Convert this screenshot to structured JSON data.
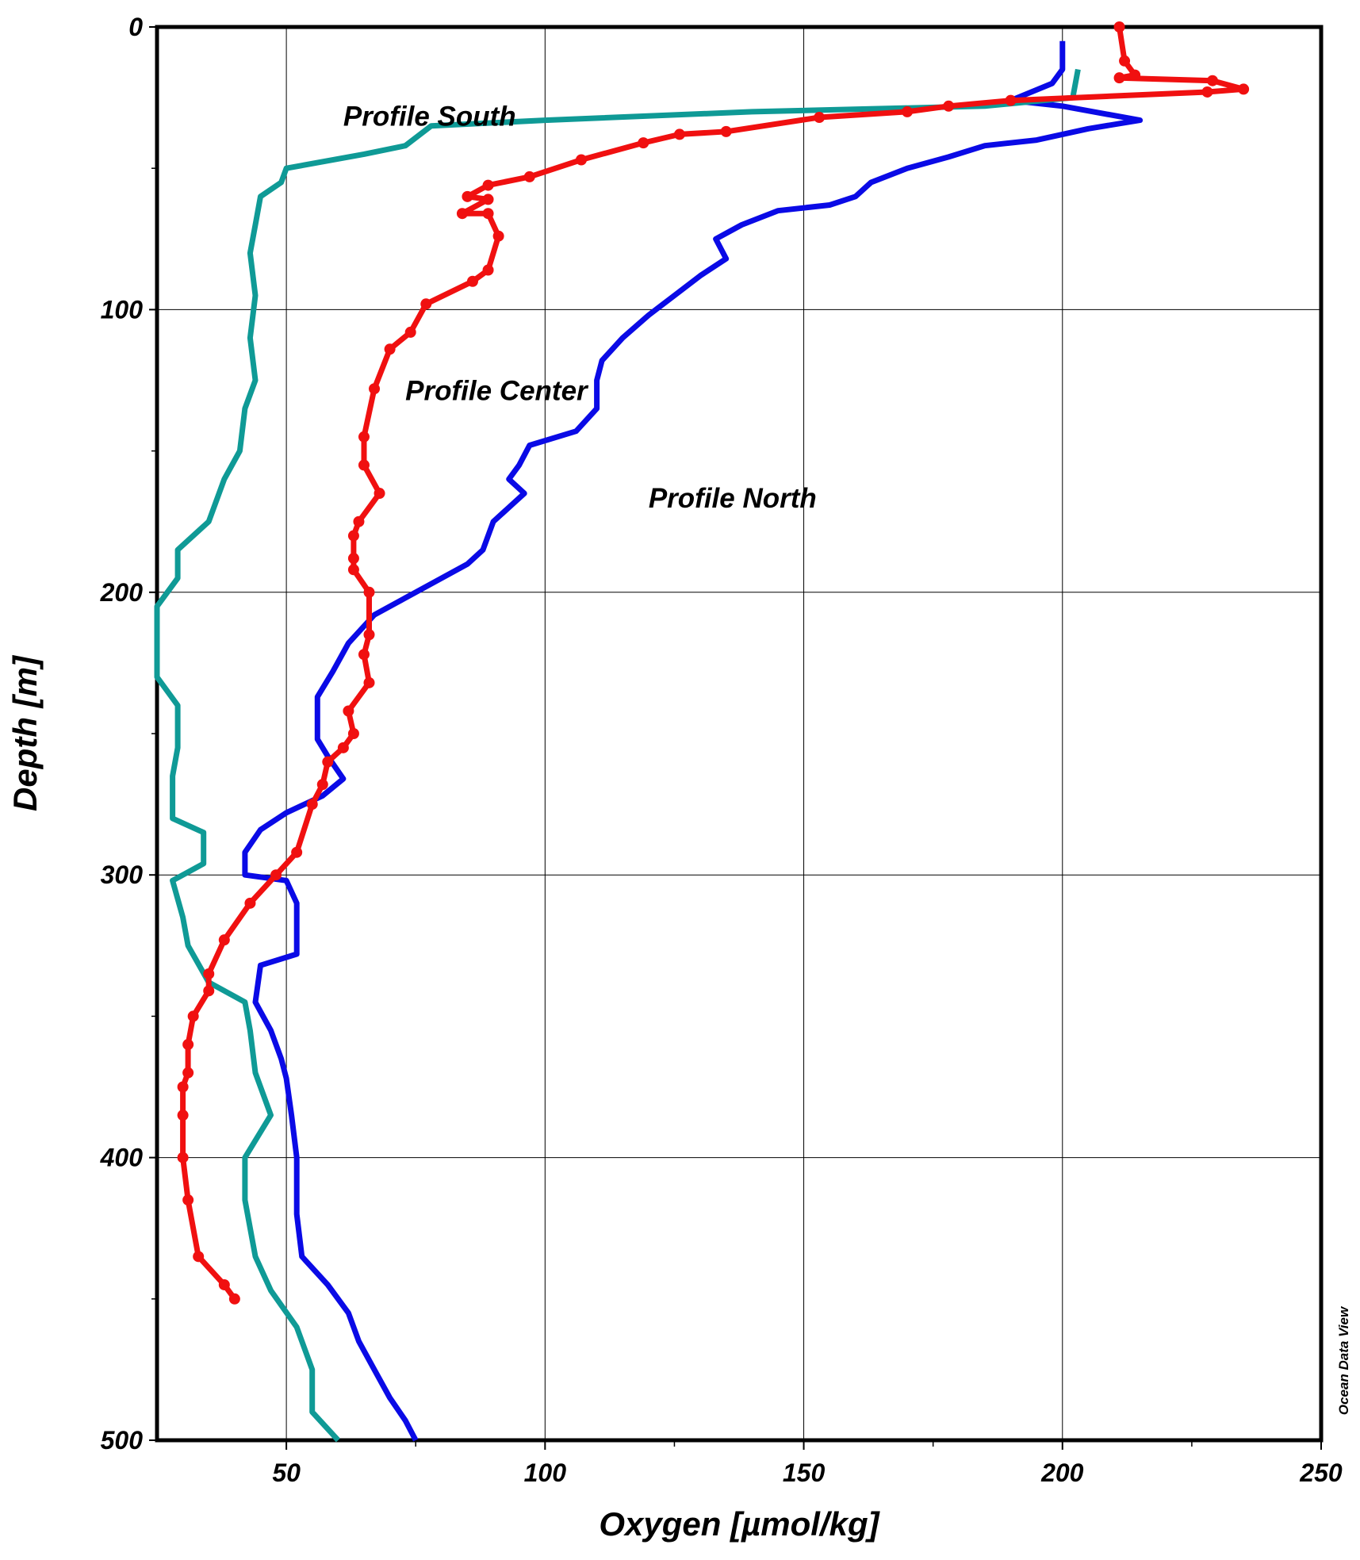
{
  "chart_data": {
    "type": "line",
    "x_label": "Oxygen [µmol/kg]",
    "y_label": "Depth [m]",
    "credit": "Ocean Data View",
    "xlim": [
      25,
      250
    ],
    "ylim": [
      0,
      500
    ],
    "y_inverted": true,
    "xticks": [
      50,
      100,
      150,
      200,
      250
    ],
    "yticks": [
      0,
      100,
      200,
      300,
      400,
      500
    ],
    "x_minor_ticks": [
      75,
      125,
      175,
      225
    ],
    "y_minor_ticks": [
      50,
      150,
      250,
      350,
      450
    ],
    "grid": true,
    "annotations": [
      {
        "text": "Profile South",
        "x": 61,
        "y": 35
      },
      {
        "text": "Profile Center",
        "x": 73,
        "y": 132
      },
      {
        "text": "Profile North",
        "x": 120,
        "y": 170
      }
    ],
    "series": [
      {
        "name": "Profile North",
        "color": "#0a0ae6",
        "markers": false,
        "x": [
          200,
          200,
          198,
          190,
          200,
          215,
          205,
          195,
          185,
          178,
          170,
          163,
          160,
          155,
          145,
          138,
          133,
          135,
          130,
          125,
          120,
          115,
          111,
          110,
          110,
          106,
          97,
          95,
          93,
          96,
          90,
          88,
          85,
          75,
          67,
          62,
          59,
          56,
          56,
          58,
          61,
          57,
          50,
          45,
          42,
          42,
          50,
          52,
          52,
          45,
          44,
          47,
          49,
          50,
          51,
          52,
          52,
          53,
          58,
          62,
          64,
          67,
          70,
          73,
          75
        ],
        "y": [
          5,
          15,
          20,
          26,
          28,
          33,
          36,
          40,
          42,
          46,
          50,
          55,
          60,
          63,
          65,
          70,
          75,
          82,
          88,
          95,
          102,
          110,
          118,
          125,
          135,
          143,
          148,
          155,
          160,
          165,
          175,
          185,
          190,
          200,
          208,
          218,
          228,
          237,
          252,
          258,
          266,
          272,
          278,
          284,
          292,
          300,
          302,
          310,
          328,
          332,
          345,
          355,
          365,
          372,
          385,
          400,
          420,
          435,
          445,
          455,
          465,
          475,
          485,
          493,
          500
        ]
      },
      {
        "name": "Profile South",
        "color": "#0f9a96",
        "markers": false,
        "x": [
          203,
          202,
          185,
          140,
          100,
          78,
          73,
          65,
          50,
          49,
          45,
          44,
          43,
          44,
          43,
          44,
          42,
          41,
          38,
          35,
          29,
          29,
          25,
          25,
          29,
          29,
          28,
          28,
          34,
          34,
          28,
          30,
          31,
          35,
          42,
          43,
          44,
          47,
          42,
          42,
          44,
          47,
          52,
          55,
          55,
          60
        ],
        "y": [
          15,
          25,
          28,
          30,
          33,
          35,
          42,
          45,
          50,
          55,
          60,
          70,
          80,
          95,
          110,
          125,
          135,
          150,
          160,
          175,
          185,
          195,
          205,
          230,
          240,
          255,
          265,
          280,
          285,
          296,
          302,
          315,
          325,
          338,
          345,
          355,
          370,
          385,
          400,
          415,
          435,
          447,
          460,
          475,
          490,
          500
        ]
      },
      {
        "name": "Profile Center",
        "color": "#f01010",
        "markers": true,
        "x": [
          211,
          212,
          214,
          211,
          229,
          235,
          228,
          190,
          178,
          170,
          153,
          135,
          126,
          119,
          107,
          97,
          89,
          85,
          89,
          84,
          89,
          91,
          89,
          86,
          77,
          74,
          70,
          67,
          65,
          65,
          68,
          64,
          63,
          63,
          63,
          66,
          66,
          65,
          66,
          62,
          63,
          61,
          58,
          57,
          55,
          52,
          48,
          43,
          38,
          35,
          35,
          32,
          31,
          31,
          30,
          30,
          30,
          31,
          33,
          38,
          40
        ],
        "y": [
          0,
          12,
          17,
          18,
          19,
          22,
          23,
          26,
          28,
          30,
          32,
          37,
          38,
          41,
          47,
          53,
          56,
          60,
          61,
          66,
          66,
          74,
          86,
          90,
          98,
          108,
          114,
          128,
          145,
          155,
          165,
          175,
          180,
          188,
          192,
          200,
          215,
          222,
          232,
          242,
          250,
          255,
          260,
          268,
          275,
          292,
          300,
          310,
          323,
          335,
          341,
          350,
          360,
          370,
          375,
          385,
          400,
          415,
          435,
          445,
          450
        ]
      }
    ]
  }
}
